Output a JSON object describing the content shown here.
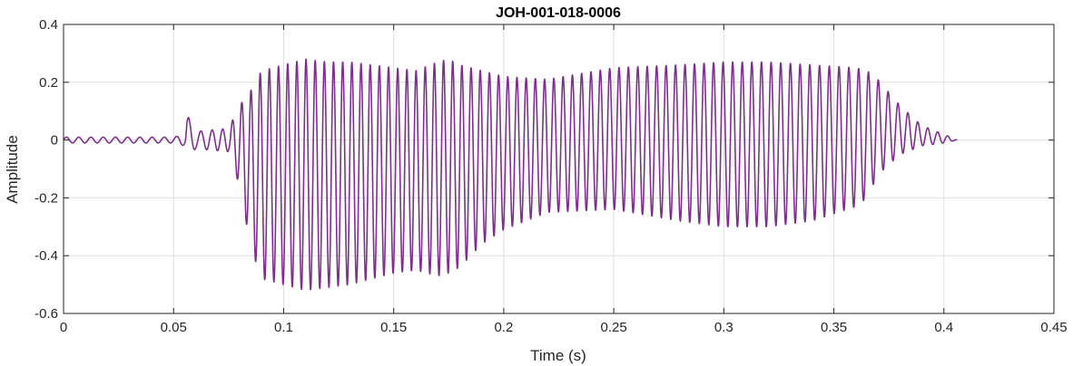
{
  "chart_data": {
    "type": "line",
    "title": "JOH-001-018-0006",
    "xlabel": "Time (s)",
    "ylabel": "Amplitude",
    "xlim": [
      0,
      0.45
    ],
    "ylim": [
      -0.6,
      0.4
    ],
    "grid": true,
    "x_ticks": [
      0,
      0.05,
      0.1,
      0.15,
      0.2,
      0.25,
      0.3,
      0.35,
      0.4,
      0.45
    ],
    "x_tick_labels": [
      "0",
      "0.05",
      "0.1",
      "0.15",
      "0.2",
      "0.25",
      "0.3",
      "0.35",
      "0.4",
      "0.45"
    ],
    "y_ticks": [
      -0.6,
      -0.4,
      -0.2,
      0,
      0.2,
      0.4
    ],
    "y_tick_labels": [
      "-0.6",
      "-0.4",
      "-0.2",
      "0",
      "0.2",
      "0.4"
    ],
    "line_color": "#7E2F8E",
    "series": [
      {
        "envelope": {
          "t": [
            0,
            0.05,
            0.055,
            0.056,
            0.06,
            0.075,
            0.08,
            0.085,
            0.09,
            0.1,
            0.11,
            0.12,
            0.13,
            0.14,
            0.15,
            0.16,
            0.17,
            0.175,
            0.18,
            0.19,
            0.2,
            0.22,
            0.25,
            0.28,
            0.3,
            0.32,
            0.34,
            0.36,
            0.365,
            0.37,
            0.38,
            0.39,
            0.4,
            0.406
          ],
          "upper": [
            0.01,
            0.01,
            0.02,
            0.09,
            0.03,
            0.04,
            0.12,
            0.17,
            0.24,
            0.26,
            0.28,
            0.27,
            0.27,
            0.26,
            0.25,
            0.24,
            0.27,
            0.28,
            0.26,
            0.24,
            0.22,
            0.21,
            0.25,
            0.26,
            0.27,
            0.27,
            0.26,
            0.25,
            0.24,
            0.21,
            0.12,
            0.05,
            0.02,
            0.0
          ],
          "lower": [
            -0.01,
            -0.01,
            -0.02,
            -0.06,
            -0.03,
            -0.04,
            -0.16,
            -0.37,
            -0.48,
            -0.5,
            -0.52,
            -0.51,
            -0.5,
            -0.48,
            -0.46,
            -0.45,
            -0.47,
            -0.46,
            -0.44,
            -0.36,
            -0.31,
            -0.25,
            -0.24,
            -0.28,
            -0.3,
            -0.3,
            -0.28,
            -0.23,
            -0.2,
            -0.12,
            -0.05,
            -0.02,
            -0.01,
            0.0
          ]
        },
        "f0_hz": [
          {
            "t": 0.0,
            "f": 180
          },
          {
            "t": 0.06,
            "f": 180
          },
          {
            "t": 0.08,
            "f": 240
          },
          {
            "t": 0.2,
            "f": 240
          },
          {
            "t": 0.406,
            "f": 220
          }
        ]
      }
    ]
  }
}
